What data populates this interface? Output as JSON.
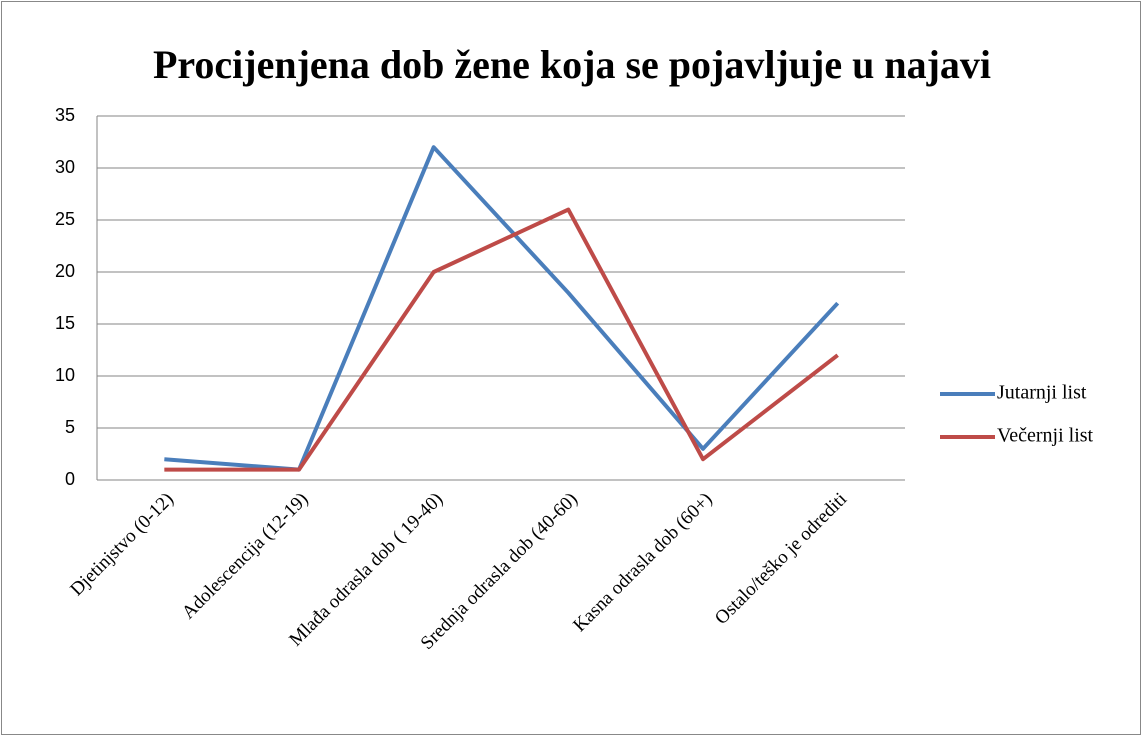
{
  "chart_data": {
    "type": "line",
    "title": "Procijenjena dob žene koja se pojavljuje u najavi",
    "categories": [
      "Djetinjstvo (0-12)",
      "Adolescencija (12-19)",
      "Mlađa odrasla dob ( 19-40)",
      "Srednja odrasla dob (40-60)",
      "Kasna odrasla dob (60+)",
      "Ostalo/teško je odrediti"
    ],
    "series": [
      {
        "name": "Jutarnji list",
        "color": "#4a7ebb",
        "values": [
          2,
          1,
          32,
          18,
          3,
          17
        ]
      },
      {
        "name": "Večernji list",
        "color": "#be4b48",
        "values": [
          1,
          1,
          20,
          26,
          2,
          12
        ]
      }
    ],
    "ylim": [
      0,
      35
    ],
    "yticks": [
      0,
      5,
      10,
      15,
      20,
      25,
      30,
      35
    ],
    "grid": true,
    "legend": "right"
  }
}
